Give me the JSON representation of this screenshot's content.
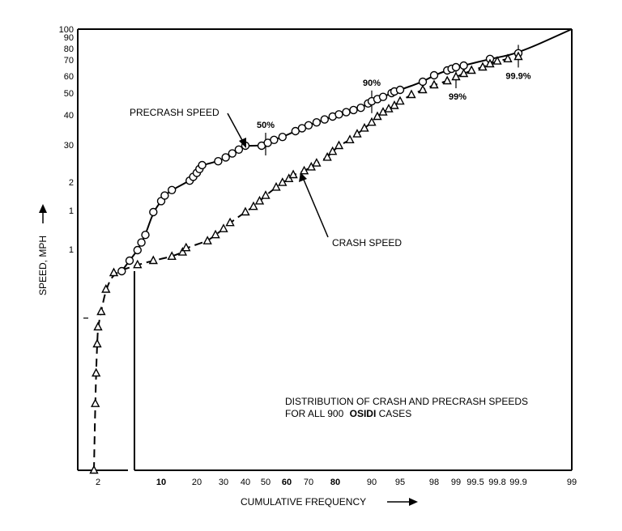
{
  "chart_data": {
    "type": "scatter",
    "title": "",
    "xlabel": "CUMULATIVE FREQUENCY",
    "ylabel": "SPEED, MPH",
    "annotation": {
      "line1": "DISTRIBUTION OF CRASH AND PRECRASH SPEEDS",
      "line2_prefix": "FOR ALL 900",
      "line2_bold": "OSIDI",
      "line2_suffix": "CASES"
    },
    "x_ticks": [
      "2",
      "10",
      "20",
      "30",
      "40",
      "50",
      "60",
      "70",
      "80",
      "90",
      "95",
      "98",
      "99",
      "99.5",
      "99.8",
      "99.9",
      "99"
    ],
    "x_ticks_bold": [
      "10",
      "60",
      "80"
    ],
    "y_ticks": [
      "100",
      "90",
      "80",
      "70",
      "60",
      "50",
      "40",
      "30",
      "2",
      "1",
      "1"
    ],
    "percentile_labels": [
      {
        "label": "50%",
        "x": 50,
        "y": 30
      },
      {
        "label": "90%",
        "x": 90,
        "y": 46
      },
      {
        "label": "99%",
        "x": 99,
        "y": 60
      },
      {
        "label": "99.9%",
        "x": 99.9,
        "y": 74
      }
    ],
    "series": [
      {
        "name": "PRECRASH SPEED",
        "marker": "circle",
        "points": [
          [
            5,
            6
          ],
          [
            6,
            8
          ],
          [
            7,
            10
          ],
          [
            7.5,
            11
          ],
          [
            8,
            12
          ],
          [
            9,
            15
          ],
          [
            10,
            17
          ],
          [
            11,
            18
          ],
          [
            13,
            19
          ],
          [
            18,
            21
          ],
          [
            19,
            22
          ],
          [
            20,
            23
          ],
          [
            21,
            24
          ],
          [
            22,
            25
          ],
          [
            28,
            26
          ],
          [
            31,
            27
          ],
          [
            34,
            28
          ],
          [
            37,
            29
          ],
          [
            40,
            30
          ],
          [
            48,
            30
          ],
          [
            51,
            31
          ],
          [
            54,
            32
          ],
          [
            58,
            33
          ],
          [
            64,
            35
          ],
          [
            67,
            36
          ],
          [
            70,
            37
          ],
          [
            73,
            38
          ],
          [
            76,
            39
          ],
          [
            79,
            40
          ],
          [
            81,
            41
          ],
          [
            83,
            42
          ],
          [
            85,
            43
          ],
          [
            87,
            44
          ],
          [
            89,
            46
          ],
          [
            90,
            47
          ],
          [
            91,
            48
          ],
          [
            92,
            49
          ],
          [
            93.5,
            51
          ],
          [
            94,
            52
          ],
          [
            95,
            53
          ],
          [
            97,
            58
          ],
          [
            98,
            62
          ],
          [
            98.6,
            65
          ],
          [
            98.8,
            66
          ],
          [
            99,
            67
          ],
          [
            99.2,
            68
          ],
          [
            99.7,
            73
          ],
          [
            99.9,
            78
          ]
        ]
      },
      {
        "name": "CRASH SPEED",
        "marker": "triangle",
        "points": [
          [
            0.5,
            0.3
          ],
          [
            1,
            0.9
          ],
          [
            1.3,
            1.4
          ],
          [
            1.7,
            2.0
          ],
          [
            2,
            2.6
          ],
          [
            2.4,
            3.2
          ],
          [
            3,
            4.3
          ],
          [
            4,
            5.6
          ],
          [
            7,
            7.2
          ],
          [
            9,
            8.0
          ],
          [
            13,
            8.8
          ],
          [
            16,
            9.6
          ],
          [
            17,
            10.3
          ],
          [
            24,
            11.2
          ],
          [
            27,
            12.0
          ],
          [
            30,
            12.8
          ],
          [
            33,
            13.6
          ],
          [
            40,
            15.0
          ],
          [
            44,
            16.0
          ],
          [
            47,
            17.0
          ],
          [
            50,
            18.0
          ],
          [
            55,
            19.5
          ],
          [
            58,
            20.5
          ],
          [
            61,
            21.5
          ],
          [
            63,
            22.5
          ],
          [
            68,
            23.5
          ],
          [
            71,
            24.5
          ],
          [
            73,
            25.5
          ],
          [
            77,
            27.0
          ],
          [
            79,
            28.5
          ],
          [
            81,
            30.0
          ],
          [
            84,
            32.0
          ],
          [
            86,
            34.0
          ],
          [
            88,
            36.0
          ],
          [
            90,
            38.0
          ],
          [
            91,
            40.0
          ],
          [
            92,
            42.0
          ],
          [
            93,
            43.5
          ],
          [
            94,
            45.0
          ],
          [
            95,
            47.0
          ],
          [
            96,
            50.0
          ],
          [
            97,
            53.0
          ],
          [
            98,
            56.0
          ],
          [
            98.6,
            58.5
          ],
          [
            99,
            61.0
          ],
          [
            99.2,
            63.0
          ],
          [
            99.4,
            65.0
          ],
          [
            99.6,
            67.0
          ],
          [
            99.7,
            69.0
          ],
          [
            99.8,
            71.0
          ],
          [
            99.85,
            73.0
          ],
          [
            99.9,
            75.0
          ]
        ]
      }
    ],
    "grid": false,
    "legend": "inline"
  }
}
